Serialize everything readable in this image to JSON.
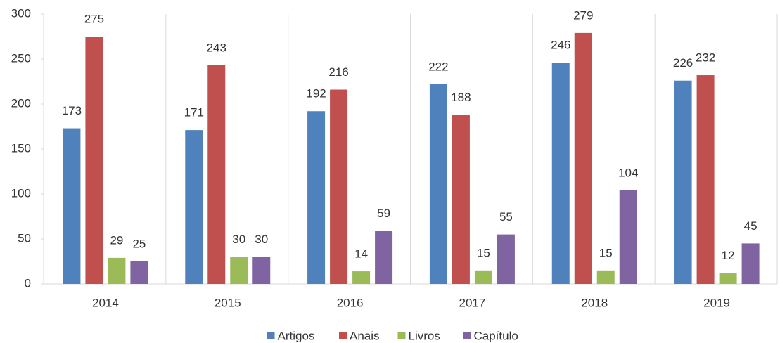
{
  "chart_data": {
    "type": "bar",
    "categories": [
      "2014",
      "2015",
      "2016",
      "2017",
      "2018",
      "2019"
    ],
    "series": [
      {
        "name": "Artigos",
        "color": "#4f81bd",
        "values": [
          173,
          171,
          192,
          222,
          246,
          226
        ]
      },
      {
        "name": "Anais",
        "color": "#c0504d",
        "values": [
          275,
          243,
          216,
          188,
          279,
          232
        ]
      },
      {
        "name": "Livros",
        "color": "#9bbb59",
        "values": [
          29,
          30,
          14,
          15,
          15,
          12
        ]
      },
      {
        "name": "Capítulo",
        "color": "#8064a2",
        "values": [
          25,
          30,
          59,
          55,
          104,
          45
        ]
      }
    ],
    "ylim": [
      0,
      300
    ],
    "yticks": [
      0,
      50,
      100,
      150,
      200,
      250,
      300
    ],
    "legend": "bottom"
  }
}
